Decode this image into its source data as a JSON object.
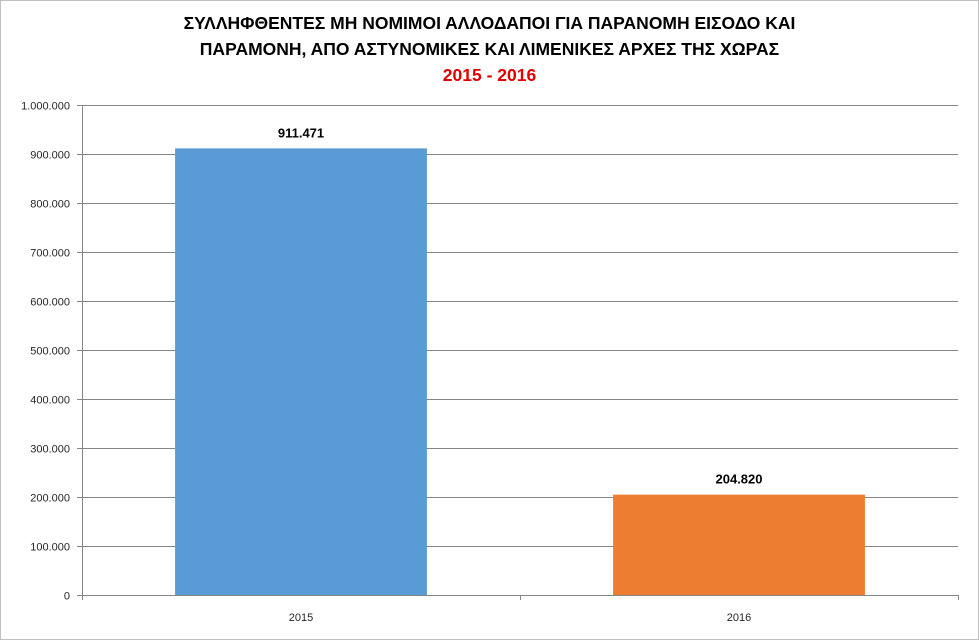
{
  "chart_data": {
    "type": "bar",
    "title_line1": "ΣΥΛΛΗΦΘΕΝΤΕΣ ΜΗ ΝΟΜΙΜΟΙ ΑΛΛΟΔΑΠΟΙ ΓΙΑ ΠΑΡΑΝΟΜΗ ΕΙΣΟΔΟ ΚΑΙ",
    "title_line2": "ΠΑΡΑΜΟΝΗ, ΑΠΟ ΑΣΤΥΝΟΜΙΚΕΣ ΚΑΙ ΛΙΜΕΝΙΚΕΣ ΑΡΧΕΣ ΤΗΣ ΧΩΡΑΣ",
    "subtitle": "2015 - 2016",
    "categories": [
      "2015",
      "2016"
    ],
    "values": [
      911471,
      204820
    ],
    "data_labels": [
      "911.471",
      "204.820"
    ],
    "bar_colors": [
      "#5b9bd5",
      "#ed7d31"
    ],
    "subtitle_color": "#e00000",
    "ylim": [
      0,
      1000000
    ],
    "yticks": [
      0,
      100000,
      200000,
      300000,
      400000,
      500000,
      600000,
      700000,
      800000,
      900000,
      1000000
    ],
    "ytick_labels": [
      "0",
      "100.000",
      "200.000",
      "300.000",
      "400.000",
      "500.000",
      "600.000",
      "700.000",
      "800.000",
      "900.000",
      "1.000.000"
    ],
    "grid": true,
    "legend": "none"
  }
}
